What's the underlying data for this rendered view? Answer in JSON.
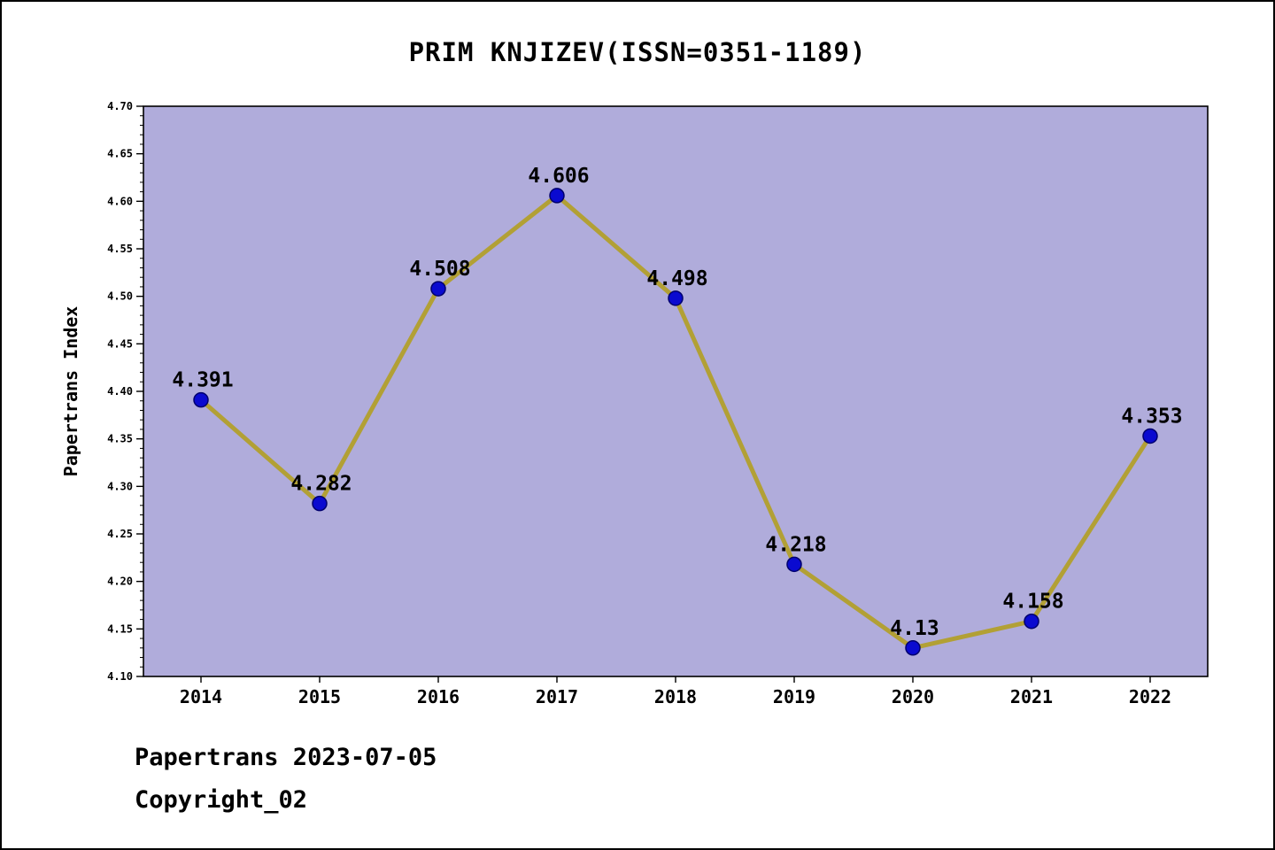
{
  "title": "PRIM KNJIZEV(ISSN=0351-1189)",
  "footer": {
    "line1": "Papertrans 2023-07-05",
    "line2": "Copyright_02"
  },
  "chart_data": {
    "type": "line",
    "title": "PRIM KNJIZEV(ISSN=0351-1189)",
    "x": [
      2014,
      2015,
      2016,
      2017,
      2018,
      2019,
      2020,
      2021,
      2022
    ],
    "values": [
      4.391,
      4.282,
      4.508,
      4.606,
      4.498,
      4.218,
      4.13,
      4.158,
      4.353
    ],
    "point_labels": [
      "4.391",
      "4.282",
      "4.508",
      "4.606",
      "4.498",
      "4.218",
      "4.13",
      "4.158",
      "4.353"
    ],
    "xlabel": "",
    "ylabel": "Papertrans Index",
    "ylim": [
      4.1,
      4.7
    ],
    "ytick_major_step": 0.05,
    "ytick_minor_step": 0.01,
    "ytick_labels": [
      "4.10",
      "4.15",
      "4.20",
      "4.25",
      "4.30",
      "4.35",
      "4.40",
      "4.45",
      "4.50",
      "4.55",
      "4.60",
      "4.65",
      "4.70"
    ],
    "grid": false,
    "legend": "none",
    "colors": {
      "line": "#b2a035",
      "marker_fill": "#0a0ad0",
      "marker_edge": "#00006e",
      "plot_background": "#b0acdb",
      "axis": "#000000",
      "text": "#000000",
      "page_background": "#ffffff"
    }
  }
}
